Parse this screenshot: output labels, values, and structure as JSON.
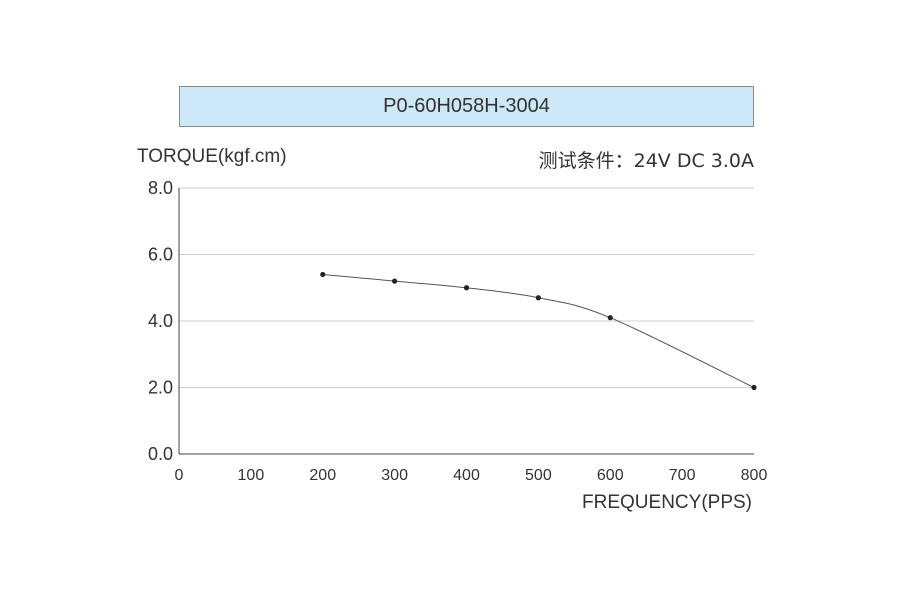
{
  "chart_data": {
    "type": "line",
    "title": "P0-60H058H-3004",
    "ylabel": "TORQUE(kgf.cm)",
    "xlabel": "FREQUENCY(PPS)",
    "annotation": "测试条件：24V DC  3.0A",
    "ylim": [
      0,
      8
    ],
    "xlim": [
      0,
      800
    ],
    "yticks": [
      "0.0",
      "2.0",
      "4.0",
      "6.0",
      "8.0"
    ],
    "xticks": [
      "0",
      "100",
      "200",
      "300",
      "400",
      "500",
      "600",
      "700",
      "800"
    ],
    "grid": true,
    "series": [
      {
        "x": [
          200,
          300,
          400,
          500,
          600,
          800
        ],
        "values": [
          5.4,
          5.2,
          5.0,
          4.7,
          4.1,
          2.0
        ]
      }
    ],
    "colors": {
      "line": "#555555",
      "marker": "#222222",
      "grid": "#cfcfcf",
      "title_bg": "#cde8f6"
    }
  }
}
